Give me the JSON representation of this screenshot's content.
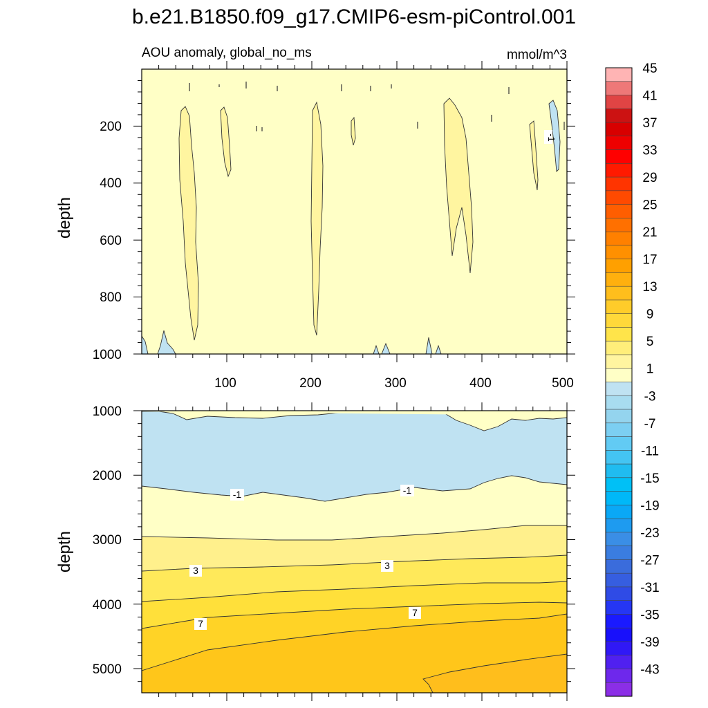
{
  "title": "b.e21.B1850.f09_g17.CMIP6-esm-piControl.001",
  "chart_data": {
    "type": "contour",
    "variable_label": "AOU anomaly, global_no_ms",
    "units": "mmol/m^3",
    "x_axis": {
      "range": [
        0,
        500
      ],
      "tick_labels": [
        "100",
        "200",
        "300",
        "400",
        "500"
      ],
      "tick_values": [
        100,
        200,
        300,
        400,
        500
      ]
    },
    "panels": [
      {
        "id": "upper",
        "ylabel": "depth",
        "ylim": [
          0,
          1000
        ],
        "y_reversed": true,
        "y_tick_labels": [
          "200",
          "400",
          "600",
          "800",
          "1000"
        ],
        "y_tick_values": [
          200,
          400,
          600,
          800,
          1000
        ],
        "contour_labels": [
          "-1"
        ]
      },
      {
        "id": "lower",
        "ylabel": "depth",
        "ylim": [
          1000,
          5375
        ],
        "y_reversed": true,
        "y_tick_labels": [
          "1000",
          "2000",
          "3000",
          "4000",
          "5000"
        ],
        "y_tick_values": [
          1000,
          2000,
          3000,
          4000,
          5000
        ],
        "contour_labels": [
          "-1",
          "-1",
          "3",
          "3",
          "7",
          "7"
        ]
      }
    ],
    "colorbar": {
      "levels": [
        -45,
        -43,
        -41,
        -39,
        -37,
        -35,
        -33,
        -31,
        -29,
        -27,
        -25,
        -23,
        -21,
        -19,
        -17,
        -15,
        -13,
        -11,
        -9,
        -7,
        -5,
        -3,
        -1,
        1,
        3,
        5,
        7,
        9,
        11,
        13,
        15,
        17,
        19,
        21,
        23,
        25,
        27,
        29,
        31,
        33,
        35,
        37,
        39,
        41,
        43,
        45
      ],
      "colors": [
        "#8b2ee6",
        "#6e28ec",
        "#5020f0",
        "#3018f6",
        "#1810fb",
        "#1a1aff",
        "#2536f4",
        "#2f4be6",
        "#365ee0",
        "#3a6cdc",
        "#3a7de0",
        "#3a8ee6",
        "#1e9bf0",
        "#0aa8f6",
        "#00b8f8",
        "#00c0f6",
        "#20bcf0",
        "#44c4f2",
        "#62cbf4",
        "#7ccff2",
        "#94d4ee",
        "#a8dcf0",
        "#bfe2f2",
        "#ffffc6",
        "#fff5a0",
        "#ffee7a",
        "#ffe44a",
        "#ffd83a",
        "#ffcc2a",
        "#ffbe1c",
        "#ffb00e",
        "#ffa000",
        "#ff9000",
        "#ff8000",
        "#ff7000",
        "#ff5e00",
        "#ff4a00",
        "#ff3400",
        "#ff1a00",
        "#ff0000",
        "#ee0000",
        "#d80000",
        "#cc1212",
        "#e04444",
        "#ee7878",
        "#ffb4b4"
      ],
      "tick_labels": [
        "-43",
        "-39",
        "-35",
        "-31",
        "-27",
        "-23",
        "-19",
        "-15",
        "-11",
        "-7",
        "-3",
        "1",
        "5",
        "9",
        "13",
        "17",
        "21",
        "25",
        "29",
        "33",
        "37",
        "41",
        "45"
      ]
    }
  }
}
